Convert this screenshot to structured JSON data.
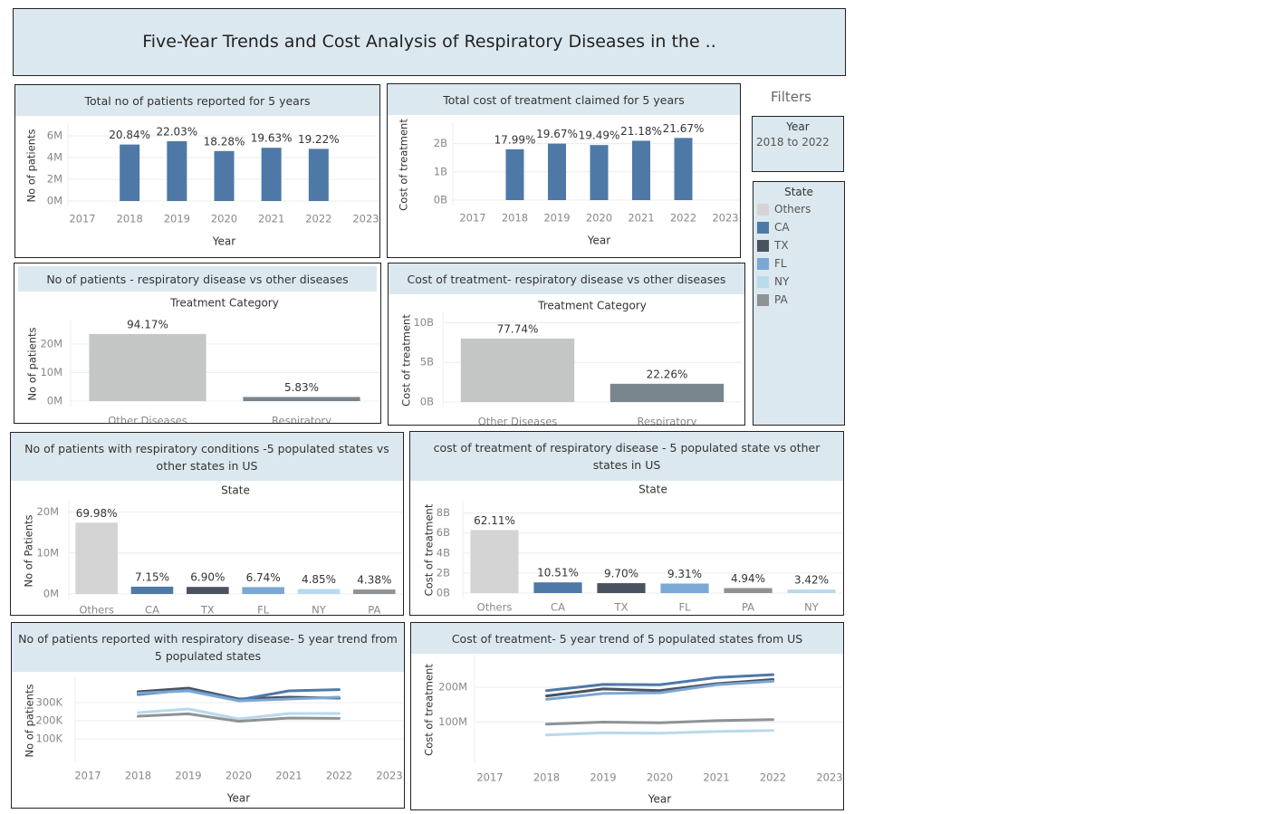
{
  "title": "Five-Year Trends and Cost Analysis of Respiratory Diseases in the ..",
  "filters": {
    "label": "Filters",
    "year": {
      "title": "Year",
      "value": "2018 to 2022"
    },
    "state": {
      "title": "State",
      "items": [
        {
          "label": "Others",
          "color": "#d4d4d4"
        },
        {
          "label": "CA",
          "color": "#4e79a7"
        },
        {
          "label": "TX",
          "color": "#4a5160"
        },
        {
          "label": "FL",
          "color": "#7ba7d4"
        },
        {
          "label": "NY",
          "color": "#b9d9ec"
        },
        {
          "label": "PA",
          "color": "#8e9294"
        }
      ]
    }
  },
  "chart_data": [
    {
      "id": "patients5y",
      "type": "bar",
      "title": "Total no of patients reported for 5 years",
      "xlabel": "Year",
      "ylabel": "No of patients",
      "x_ticks": [
        "2017",
        "2018",
        "2019",
        "2020",
        "2021",
        "2022",
        "2023"
      ],
      "categories": [
        "2018",
        "2019",
        "2020",
        "2021",
        "2022"
      ],
      "values": [
        5.2,
        5.5,
        4.6,
        4.9,
        4.8
      ],
      "labels": [
        "20.84%",
        "22.03%",
        "18.28%",
        "19.63%",
        "19.22%"
      ],
      "y_ticks": [
        "0M",
        "2M",
        "4M",
        "6M"
      ],
      "ylim": [
        0,
        6.5
      ],
      "unit": "M",
      "color": "#4e79a7"
    },
    {
      "id": "cost5y",
      "type": "bar",
      "title": "Total cost of treatment claimed for 5 years",
      "xlabel": "Year",
      "ylabel": "Cost of treatment",
      "x_ticks": [
        "2017",
        "2018",
        "2019",
        "2020",
        "2021",
        "2022",
        "2023"
      ],
      "categories": [
        "2018",
        "2019",
        "2020",
        "2021",
        "2022"
      ],
      "values": [
        1.8,
        2.0,
        1.95,
        2.1,
        2.2
      ],
      "labels": [
        "17.99%",
        "19.67%",
        "19.49%",
        "21.18%",
        "21.67%"
      ],
      "y_ticks": [
        "0B",
        "1B",
        "2B"
      ],
      "ylim": [
        0,
        2.5
      ],
      "unit": "B",
      "color": "#4e79a7"
    },
    {
      "id": "patientsResp",
      "type": "bar",
      "title": "No of patients - respiratory disease vs other diseases",
      "header": "Treatment Category",
      "ylabel": "No of patients",
      "categories": [
        "Other Diseases",
        "Respiratory"
      ],
      "values": [
        23.5,
        1.45
      ],
      "labels": [
        "94.17%",
        "5.83%"
      ],
      "y_ticks": [
        "0M",
        "10M",
        "20M"
      ],
      "ylim": [
        0,
        26
      ],
      "unit": "M",
      "colors": [
        "#c4c6c6",
        "#79858c"
      ]
    },
    {
      "id": "costResp",
      "type": "bar",
      "title": "Cost of treatment- respiratory disease vs other diseases",
      "header": "Treatment Category",
      "ylabel": "Cost of treatment",
      "categories": [
        "Other Diseases",
        "Respiratory"
      ],
      "values": [
        8.0,
        2.3
      ],
      "labels": [
        "77.74%",
        "22.26%"
      ],
      "y_ticks": [
        "0B",
        "5B",
        "10B"
      ],
      "ylim": [
        0,
        10.5
      ],
      "unit": "B",
      "colors": [
        "#c4c6c6",
        "#79858c"
      ]
    },
    {
      "id": "patientsState",
      "type": "bar",
      "title": "No of patients with respiratory conditions -5 populated states vs other states in US",
      "header": "State",
      "ylabel": "No of Patients",
      "categories": [
        "Others",
        "CA",
        "TX",
        "FL",
        "NY",
        "PA"
      ],
      "values": [
        17.4,
        1.78,
        1.72,
        1.68,
        1.21,
        1.09
      ],
      "labels": [
        "69.98%",
        "7.15%",
        "6.90%",
        "6.74%",
        "4.85%",
        "4.38%"
      ],
      "y_ticks": [
        "0M",
        "10M",
        "20M"
      ],
      "ylim": [
        0,
        21
      ],
      "unit": "M",
      "colors": [
        "#d4d4d4",
        "#4e79a7",
        "#4a5160",
        "#7ba7d4",
        "#b9d9ec",
        "#8e9294"
      ]
    },
    {
      "id": "costState",
      "type": "bar",
      "title": "cost of treatment of respiratory disease - 5 populated state vs other states in US",
      "header": "State",
      "ylabel": "Cost of treatment",
      "categories": [
        "Others",
        "CA",
        "TX",
        "FL",
        "PA",
        "NY"
      ],
      "values": [
        6.3,
        1.07,
        0.99,
        0.95,
        0.5,
        0.35
      ],
      "labels": [
        "62.11%",
        "10.51%",
        "9.70%",
        "9.31%",
        "4.94%",
        "3.42%"
      ],
      "y_ticks": [
        "0B",
        "2B",
        "4B",
        "6B",
        "8B"
      ],
      "ylim": [
        0,
        8.6
      ],
      "unit": "B",
      "colors": [
        "#d4d4d4",
        "#4e79a7",
        "#4a5160",
        "#7ba7d4",
        "#8e9294",
        "#b9d9ec"
      ]
    },
    {
      "id": "patientsTrend",
      "type": "line",
      "title": "No of patients reported with respiratory disease- 5 year trend from 5 populated states",
      "xlabel": "Year",
      "ylabel": "No of patients",
      "x_ticks": [
        "2017",
        "2018",
        "2019",
        "2020",
        "2021",
        "2022",
        "2023"
      ],
      "x": [
        "2018",
        "2019",
        "2020",
        "2021",
        "2022"
      ],
      "y_ticks": [
        "100K",
        "200K",
        "300K"
      ],
      "ylim": [
        0,
        400
      ],
      "unit": "K",
      "series": [
        {
          "name": "TX",
          "color": "#4a5160",
          "values": [
            360,
            380,
            320,
            330,
            325
          ]
        },
        {
          "name": "CA",
          "color": "#4e79a7",
          "values": [
            345,
            370,
            315,
            365,
            372
          ]
        },
        {
          "name": "FL",
          "color": "#7ba7d4",
          "values": [
            352,
            365,
            310,
            320,
            330
          ]
        },
        {
          "name": "NY",
          "color": "#b9d9ec",
          "values": [
            245,
            265,
            210,
            240,
            240
          ]
        },
        {
          "name": "PA",
          "color": "#8e9294",
          "values": [
            225,
            238,
            197,
            215,
            213
          ]
        }
      ]
    },
    {
      "id": "costTrend",
      "type": "line",
      "title": "Cost of treatment- 5 year trend of 5 populated states from US",
      "xlabel": "Year",
      "ylabel": "Cost of treatment",
      "x_ticks": [
        "2017",
        "2018",
        "2019",
        "2020",
        "2021",
        "2022",
        "2023"
      ],
      "x": [
        "2018",
        "2019",
        "2020",
        "2021",
        "2022"
      ],
      "y_ticks": [
        "100M",
        "200M"
      ],
      "ylim": [
        0,
        270
      ],
      "unit": "M",
      "series": [
        {
          "name": "CA",
          "color": "#4e79a7",
          "values": [
            190,
            208,
            207,
            228,
            236
          ]
        },
        {
          "name": "TX",
          "color": "#4a5160",
          "values": [
            175,
            195,
            190,
            210,
            222
          ]
        },
        {
          "name": "FL",
          "color": "#7ba7d4",
          "values": [
            165,
            182,
            184,
            207,
            217
          ]
        },
        {
          "name": "PA",
          "color": "#8e9294",
          "values": [
            94,
            100,
            98,
            104,
            107
          ]
        },
        {
          "name": "NY",
          "color": "#b9d9ec",
          "values": [
            63,
            69,
            68,
            73,
            76
          ]
        }
      ]
    }
  ]
}
